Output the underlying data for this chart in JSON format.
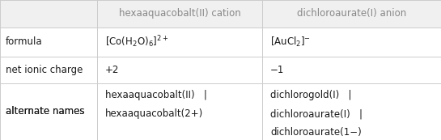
{
  "header_col1": "hexaaquacobalt(II) cation",
  "header_col2": "dichloroaurate(I) anion",
  "row_labels": [
    "formula",
    "net ionic charge",
    "alternate names"
  ],
  "col1_formula": "[Co(H$_2$O)$_6$]$^{2+}$",
  "col2_formula": "[AuCl$_2$]$^{-}$",
  "col1_charge": "+2",
  "col2_charge": "−1",
  "col1_names_lines": [
    "hexaaquacobalt(II)   |",
    "hexaaquacobalt(2+)"
  ],
  "col2_names_lines": [
    "dichlorogold(I)   |",
    "dichloroaurate(I)   |",
    "dichloroaurate(1−)"
  ],
  "bg_color": "#ffffff",
  "header_text_color": "#888888",
  "line_color": "#cccccc",
  "text_color": "#1a1a1a",
  "font_size": 8.5,
  "header_font_size": 8.5,
  "col_bounds": [
    0.0,
    0.22,
    0.595,
    1.0
  ],
  "row_bounds": [
    1.0,
    0.805,
    0.595,
    0.405,
    0.0
  ]
}
